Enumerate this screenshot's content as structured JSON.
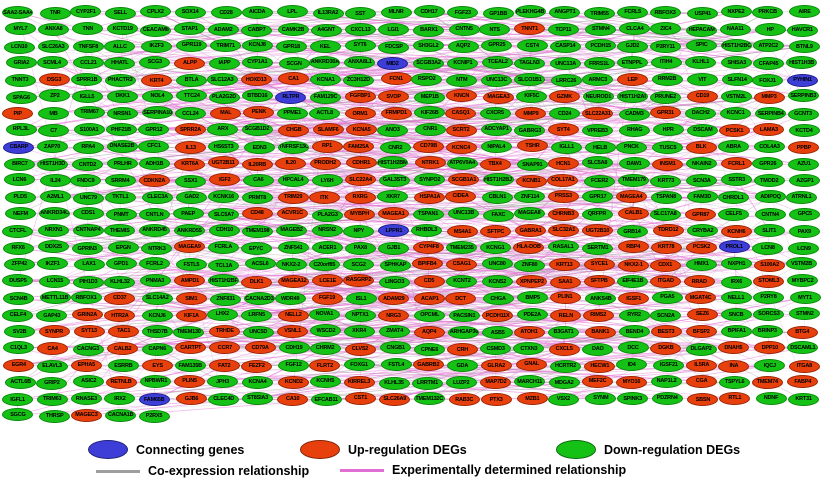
{
  "colors": {
    "down": "#15c115",
    "up": "#e8400d",
    "connecting": "#3d3dd8",
    "co_edge": "#9e9e9e",
    "exp_edge": "#e26fd3"
  },
  "legend": {
    "connecting": "Connecting genes",
    "up": "Up-regulation DEGs",
    "down": "Down-regulation DEGs",
    "co": "Co-expression relationship",
    "exp": "Experimentally determined relationship"
  },
  "network": {
    "node_type_encoding": "prefix * = up-regulation DEG, prefix @ = connecting gene, none = down-regulation DEG",
    "rows": [
      [
        "SAA2-SAA4",
        "TNR",
        "CYP2F1",
        "SELL",
        "CPLX2",
        "SOX14",
        "CD28",
        "AICDA",
        "LPL",
        "IL13RA2",
        "SST",
        "MLNR",
        "CDH17",
        "FGF23",
        "GP1BB",
        "PLEKHG4B",
        "ANGPT1",
        "TRIM55",
        "FCRL5",
        "RBFOX3",
        "USP41",
        "NXPE2",
        "PRKCB",
        "AIRE"
      ],
      [
        "MYL7",
        "ANXA8",
        "TNN",
        "KCTD19",
        "CEACAM8",
        "STAP1",
        "ADAM2",
        "CABP7",
        "CAMK2B",
        "A4GNT",
        "CXCL13",
        "LGI1",
        "BARX1",
        "CNTN5",
        "NTS",
        "*TNNT1",
        "TCP11",
        "STMN4",
        "CLCA4",
        "ZIC4",
        "HEPACAM",
        "NAA11",
        "HP",
        "HAVCR1"
      ],
      [
        "LCN10",
        "SLC26A3",
        "TNFSF8",
        "ALLC",
        "IKZF3",
        "GPR119",
        "TRIM71",
        "KCNJ8",
        "GPR18",
        "KEL",
        "SYT6",
        "FDCSP",
        "SH3GL2",
        "AQP2",
        "GPR25",
        "CST4",
        "CASP14",
        "PCDH15",
        "GJD2",
        "P2RY11",
        "SPIC",
        "HIST1H2BC",
        "ATP2C2",
        "BTNL9"
      ],
      [
        "GRIA2",
        "SCML4",
        "CCL21",
        "HHATL",
        "SCG3",
        "*ALPP",
        "IAPP",
        "CYP1A1",
        "SCGN",
        "ANKRD30A",
        "ANXA8L1",
        "@MID2",
        "SCGB3A2",
        "KCNIP1",
        "TCEAL2",
        "TAGLN3",
        "UNC13A",
        "FRRS1L",
        "ETNPPL",
        "ITIH4",
        "KLHL1",
        "SHISA3",
        "CFAP45",
        "HIST1H3B"
      ],
      [
        "TNNT3",
        "*DSG3",
        "SPRR1B",
        "PHACTR3",
        "*KRT4",
        "BTLA",
        "SLC12A3",
        "*HOXD13",
        "*CA1",
        "KCNA1",
        "ZC3H12D",
        "*FCN1",
        "RSPO2",
        "NTM",
        "UNC13C",
        "SLCO1B1",
        "LRRC26",
        "ARMC3",
        "*LEP",
        "RRM2B",
        "VIT",
        "SLFN14",
        "FOXJ1",
        "@PYHIN1"
      ],
      [
        "SPAG6",
        "ZP2",
        "IGLL5",
        "DKK1",
        "NOL4",
        "TTC24",
        "PLA2G2D",
        "BTBD16",
        "@RLTPR",
        "FAM129C",
        "*FGFBP1",
        "*SVOP",
        "MEP1B",
        "*KNCN",
        "*MAGEA3",
        "KIF5C",
        "*GZMK",
        "NEUROD1",
        "HIST1H2AI",
        "PRUNE2",
        "*CD19",
        "VSTM2L",
        "*MMP3",
        "SERPINB3"
      ],
      [
        "*PIP",
        "MB",
        "TRIM67",
        "NRSN1",
        "SERPINA10",
        "CCL24",
        "*MAL",
        "*PENK",
        "PPME1",
        "ACTL8",
        "*ORM1",
        "*FRMPD1",
        "KIF26B",
        "*CASQ1",
        "CXCR5",
        "*MMP9",
        "CD24",
        "*SLC22A31",
        "CADM3",
        "*GPR31",
        "DACH2",
        "KCNC1",
        "SERPINB4",
        "GCNT3"
      ],
      [
        "RPL3L",
        "C7",
        "S100A1",
        "PHF21B",
        "GPR12",
        "*SPRR2A",
        "ARX",
        "SCGB1D2",
        "*CHGB",
        "*SLAMF6",
        "*KCNA5",
        "ANO3",
        "CNR1",
        "*SCRT2",
        "ADCYAP1",
        "GABRG3",
        "*SYT4",
        "VPREB3",
        "RHAG",
        "HPR",
        "DSCAM",
        "*PCSK1",
        "*LAMA3",
        "KCTD4"
      ],
      [
        "@CBARP",
        "ZAP70",
        "RPA4",
        "DNASE2B",
        "CFC1",
        "*IL13",
        "HS6ST3",
        "EDN3",
        "TNFRSF13C",
        "*RP1",
        "*FAM25A",
        "CNR2",
        "*CD79B",
        "*KCNC4",
        "NIPAL4",
        "*TSHR",
        "IGLL1",
        "HELB",
        "PNCK",
        "TUSC5",
        "*BLK",
        "ABRA",
        "COL4A3",
        "*PPBP"
      ],
      [
        "BIRC7",
        "HIST1H3D",
        "CNTD2",
        "PRLHR",
        "ADH1B",
        "*KRT6A",
        "*UGT2B11",
        "*IL20RB",
        "*IL20",
        "*PRODH2",
        "*CDHR1",
        "HIST1H2BM",
        "*NTRK1",
        "ATP6V0A4",
        "*TBX4",
        "SNAP91",
        "*HCN1",
        "SLC5A8",
        "DAW1",
        "*INSM1",
        "NKAIN2",
        "*FCRL1",
        "GPR26",
        "AZU1"
      ],
      [
        "LCN6",
        "IL24",
        "FNDC9",
        "SRRM4",
        "*CDKN2A",
        "SSX1",
        "*IGF2",
        "CA6",
        "HPCAL4",
        "LY6H",
        "*SLC22A4",
        "GAL3ST3",
        "SYNPO2",
        "*SCGB1A1",
        "HIST1H2BJ",
        "*KCNB1",
        "*COL17A1",
        "FCER2",
        "TMEM179",
        "KRT73",
        "SCN3A",
        "SSTR3",
        "TMOD2",
        "AZGP1"
      ],
      [
        "PLD5",
        "A2ML1",
        "UNC79",
        "TKTL1",
        "CLEC3A",
        "GAD2",
        "KCNK16",
        "PRMT8",
        "*TRIM29",
        "*ITK",
        "*RXRG",
        "XKR7",
        "*HSPA1A",
        "*CIDEA",
        "CBLN1",
        "ZNF114",
        "*PRSS3",
        "GPR17",
        "*MAGEA4",
        "TSPAN8",
        "FAM3D",
        "CHRDL1",
        "ADIPOQ",
        "ATRNL1"
      ],
      [
        "NEFM",
        "ANKRD34C",
        "CDS1",
        "PNMT",
        "CNTLN",
        "PAEP",
        "SLC5A7",
        "*CD48",
        "*ACVR1C",
        "PLA2G3",
        "*MYBPH",
        "*MAGEA1",
        "TSPAN1",
        "UNC13B",
        "FAXC",
        "MAGEA8",
        "*CHRNB3",
        "QRFPR",
        "*CALB1",
        "SLC17A8",
        "*GPR87",
        "CELF5",
        "CNTN4",
        "GPC5"
      ],
      [
        "CTCFL",
        "NRXN1",
        "CNTNAP4",
        "THEMIS",
        "ANKRD45",
        "ANKRD55",
        "CDH10",
        "TMEM198",
        "MAGEB2",
        "NRSN2",
        "NPY",
        "@LPPR1",
        "RHBDL3",
        "*MS4A1",
        "*SFTPC",
        "*GABRA1",
        "*SLC32A1",
        "*UGT2B10",
        "GRB14",
        "*TDRD12",
        "CRYBA2",
        "*KCNH6",
        "SLIT1",
        "PAX9"
      ],
      [
        "RFX6",
        "DDX25",
        "GPRIN3",
        "EPGN",
        "NTRK3",
        "*MAGEA9",
        "FCRLA",
        "EPYC",
        "ZNF541",
        "ACER1",
        "PAX8",
        "GJB1",
        "*CYP4F8",
        "TMEM235",
        "KCNG1",
        "*HLA-DOB",
        "RASAL1",
        "SERTM1",
        "*RBP4",
        "*KRT78",
        "*PCSK2",
        "@PROL1",
        "LCN8",
        "LCN9"
      ],
      [
        "ZFP42",
        "IKZF1",
        "LAX1",
        "GPD1",
        "FCRL2",
        "FSTL5",
        "TCL1A",
        "ACSL6",
        "NKX2-2",
        "C20orf85",
        "SCG2",
        "SPHKAP",
        "*BPIFB4",
        "*CSAG1",
        "UNC80",
        "ZNF80",
        "*KRT13",
        "*SYCE1",
        "*NKX2-1",
        "*CDX1",
        "HMX1",
        "NXPH1",
        "*S100A2",
        "VSTM2B"
      ],
      [
        "DUSP5",
        "LCN15",
        "PIH1D3",
        "KLHL32",
        "PNMA3",
        "*AMPD1",
        "HIST1H2BF",
        "*DLK1",
        "*MAGEA12",
        "*LCE1E",
        "*RASGRP2",
        "LINGO3",
        "*CD5",
        "KCNT2",
        "KCNS2",
        "*XPNPEP2",
        "*SAA1",
        "*SFTPB",
        "EIF4E1B",
        "*ITGAD",
        "*RRAD",
        "IRX6",
        "*STOML3",
        "MYBPC2"
      ],
      [
        "SCN4B",
        "METTL11B",
        "RBFOX1",
        "*CD37",
        "SLC14A2",
        "*SIM1",
        "ZNF831",
        "CACNA2D3",
        "WDR49",
        "*FGF19",
        "ISL1",
        "*ADAM29",
        "*ACAP1",
        "*DCT",
        "CHGA",
        "BMP5",
        "*PLIN1",
        "ANKS4B",
        "*IGSF1",
        "PGA5",
        "*MGAT4C",
        "NELL1",
        "P2RY8",
        "MYT1"
      ],
      [
        "CELF4",
        "GAP43",
        "*GRIN2A",
        "*HTR2A",
        "KCNJ6",
        "*KIF1A",
        "LHX2",
        "LRFN5",
        "*NELL2",
        "NOVA1",
        "NPTX1",
        "*NRG3",
        "OPCML",
        "PACSIN1",
        "*PCDH11X",
        "PDE2A",
        "*RELN",
        "*RIMS2",
        "RYR2",
        "SCN2A",
        "*SEZ6",
        "SNCB",
        "SORCS3",
        "STMN2"
      ],
      [
        "SV2B",
        "*SYNPR",
        "*SYT13",
        "*TAC1",
        "THSD7B",
        "TMEM130",
        "*TRHDE",
        "UNC5D",
        "*VSNL1",
        "WSCD2",
        "XKR4",
        "ZMAT4",
        "*AQP4",
        "ARHGAP36",
        "ASB5",
        "*ATOH1",
        "B3GAT1",
        "*BANK1",
        "BEND4",
        "*BEST3",
        "*BFSP2",
        "BPIFA1",
        "BRINP3",
        "*BTG4"
      ],
      [
        "C1QL3",
        "*CA4",
        "CACNG3",
        "*CALB2",
        "CAPN6",
        "*CARTPT",
        "*CCR7",
        "*CD79A",
        "CDH19",
        "CHRM2",
        "*CLVS2",
        "CNGB1",
        "CPNE6",
        "*CRH",
        "CSMD3",
        "CTXN3",
        "*CXCL5",
        "DAO",
        "DCC",
        "*DGKB",
        "DLGAP2",
        "*DNAH5",
        "*DPP10",
        "DSCAML1"
      ],
      [
        "*EGR4",
        "ELAVL3",
        "*EPHA5",
        "ESRRB",
        "*EYS",
        "FAM135B",
        "*FAT2",
        "*FEZF2",
        "FGF12",
        "*FLRT2",
        "FOXG1",
        "FSTL4",
        "*GABRB2",
        "GDA",
        "*GLRA2",
        "*GNAL",
        "HCRTR2",
        "*HECW1",
        "ID4",
        "IGSF21",
        "*IL5RA",
        "*INA",
        "IQCJ",
        "*ITGA8"
      ],
      [
        "ACTL6B",
        "GRIP2",
        "ASIC2",
        "*RETNLB",
        "NPBWR1",
        "*PLIN5",
        "JPH3",
        "KCNA4",
        "*KCND2",
        "KCNH5",
        "*KIRREL3",
        "KLHL35",
        "LRRTM1",
        "LUZP2",
        "*MAP7D2",
        "MARCH11",
        "MDGA2",
        "*MEF2C",
        "*MYO16",
        "NAP1L2",
        "*CGA",
        "TSPYL6",
        "*TMEM74",
        "*FABP4"
      ],
      [
        "IGFL1",
        "TRIM63",
        "RNASE3",
        "IRX2",
        "@FAM65B",
        "*GJB6",
        "CLEC4D",
        "ST8SIA3",
        "*CA10",
        "EFCAB11",
        "*CST1",
        "*SLC26A9",
        "TMEM132C",
        "*RAB3C",
        "*PTX3",
        "*MZB1",
        "VSX2",
        "SYNM",
        "SPINK3",
        "PDZRN4",
        "*SBSN",
        "*RTL1",
        "NDNF",
        "KRT31"
      ],
      [
        "SGCG",
        "THRSP",
        "*MAGEC3",
        "CACNA1B",
        "P2RX5"
      ]
    ]
  }
}
